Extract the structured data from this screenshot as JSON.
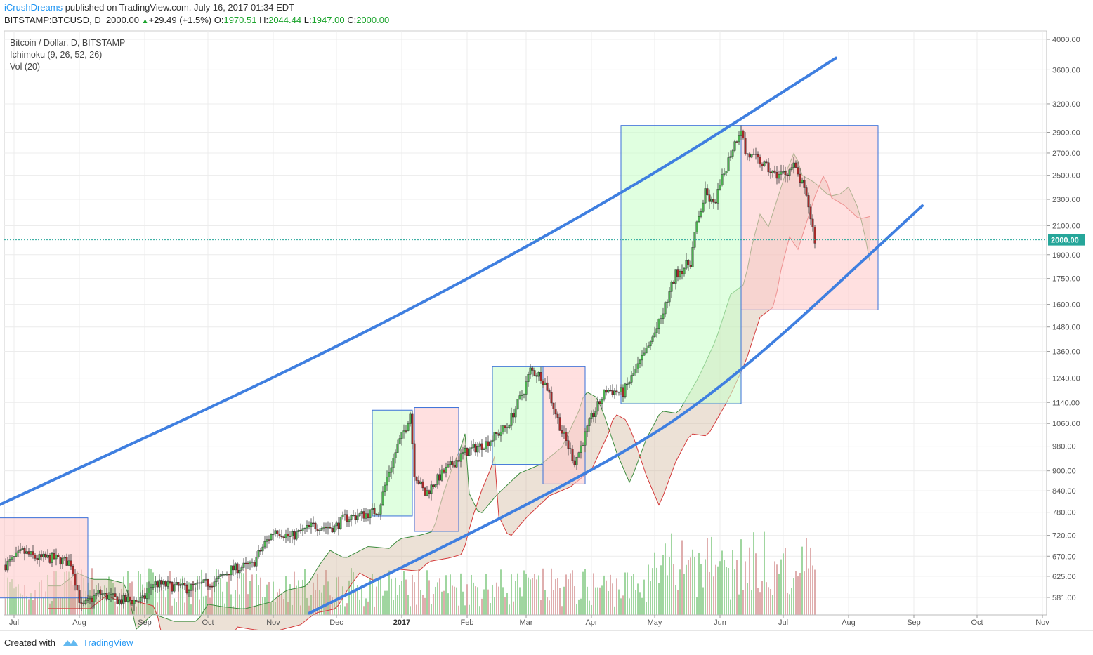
{
  "publish": {
    "user": "iCrushDreams",
    "text": "published on TradingView.com, July 16, 2017 01:34 EDT"
  },
  "quote": {
    "symbol": "BITSTAMP:BTCUSD, D",
    "last": "2000.00",
    "change": "+29.49 (+1.5%)",
    "o_label": "O:",
    "o": "1970.51",
    "h_label": "H:",
    "h": "2044.44",
    "l_label": "L:",
    "l": "1947.00",
    "c_label": "C:",
    "c": "2000.00"
  },
  "legend": {
    "title": "Bitcoin / Dollar, D, BITSTAMP",
    "ind1": "Ichimoku (9, 26, 52, 26)",
    "ind2": "Vol (20)"
  },
  "footer": {
    "created": "Created with",
    "brand": "TradingView"
  },
  "colors": {
    "up": "#4caf50",
    "down": "#a52a2a",
    "trend": "#3f7fe0",
    "box_green": "#ccffcc",
    "box_red": "#ffcccc",
    "price_line": "#26a69a"
  },
  "chart_data": {
    "type": "candlestick",
    "y_scale": "log",
    "y_ticks": [
      "4000.00",
      "3600.00",
      "3200.00",
      "2900.00",
      "2700.00",
      "2500.00",
      "2300.00",
      "2100.00",
      "1900.00",
      "1750.00",
      "1600.00",
      "1480.00",
      "1360.00",
      "1240.00",
      "1140.00",
      "1060.00",
      "980.00",
      "900.00",
      "840.00",
      "780.00",
      "720.00",
      "670.00",
      "625.00",
      "581.00"
    ],
    "x_ticks": [
      {
        "label": "Jul",
        "date": "2016-07-01"
      },
      {
        "label": "Aug",
        "date": "2016-08-01"
      },
      {
        "label": "Sep",
        "date": "2016-09-01"
      },
      {
        "label": "Oct",
        "date": "2016-10-01"
      },
      {
        "label": "Nov",
        "date": "2016-11-01"
      },
      {
        "label": "Dec",
        "date": "2016-12-01"
      },
      {
        "label": "2017",
        "date": "2017-01-01",
        "bold": true
      },
      {
        "label": "Feb",
        "date": "2017-02-01"
      },
      {
        "label": "Mar",
        "date": "2017-03-01"
      },
      {
        "label": "Apr",
        "date": "2017-04-01"
      },
      {
        "label": "May",
        "date": "2017-05-01"
      },
      {
        "label": "Jun",
        "date": "2017-06-01"
      },
      {
        "label": "Jul",
        "date": "2017-07-01"
      },
      {
        "label": "Aug",
        "date": "2017-08-01"
      },
      {
        "label": "Sep",
        "date": "2017-09-01"
      },
      {
        "label": "Oct",
        "date": "2017-10-01"
      },
      {
        "label": "Nov",
        "date": "2017-11-01"
      }
    ],
    "last_price": "2000.00",
    "price_path": [
      [
        "2016-06-27",
        650
      ],
      [
        "2016-07-05",
        680
      ],
      [
        "2016-07-12",
        665
      ],
      [
        "2016-07-20",
        665
      ],
      [
        "2016-07-28",
        655
      ],
      [
        "2016-08-02",
        560
      ],
      [
        "2016-08-10",
        590
      ],
      [
        "2016-08-20",
        575
      ],
      [
        "2016-08-31",
        575
      ],
      [
        "2016-09-05",
        610
      ],
      [
        "2016-09-12",
        605
      ],
      [
        "2016-09-22",
        600
      ],
      [
        "2016-10-05",
        615
      ],
      [
        "2016-10-12",
        640
      ],
      [
        "2016-10-22",
        650
      ],
      [
        "2016-10-28",
        700
      ],
      [
        "2016-11-02",
        735
      ],
      [
        "2016-11-09",
        715
      ],
      [
        "2016-11-20",
        745
      ],
      [
        "2016-11-30",
        740
      ],
      [
        "2016-12-05",
        765
      ],
      [
        "2016-12-15",
        775
      ],
      [
        "2016-12-21",
        785
      ],
      [
        "2016-12-25",
        880
      ],
      [
        "2016-12-30",
        980
      ],
      [
        "2017-01-03",
        1050
      ],
      [
        "2017-01-05",
        1100
      ],
      [
        "2017-01-07",
        895
      ],
      [
        "2017-01-12",
        830
      ],
      [
        "2017-01-20",
        890
      ],
      [
        "2017-01-31",
        960
      ],
      [
        "2017-02-10",
        990
      ],
      [
        "2017-02-20",
        1050
      ],
      [
        "2017-02-28",
        1190
      ],
      [
        "2017-03-03",
        1275
      ],
      [
        "2017-03-08",
        1250
      ],
      [
        "2017-03-11",
        1200
      ],
      [
        "2017-03-18",
        1030
      ],
      [
        "2017-03-24",
        930
      ],
      [
        "2017-03-26",
        960
      ],
      [
        "2017-04-01",
        1080
      ],
      [
        "2017-04-08",
        1190
      ],
      [
        "2017-04-16",
        1180
      ],
      [
        "2017-04-26",
        1340
      ],
      [
        "2017-05-04",
        1520
      ],
      [
        "2017-05-11",
        1780
      ],
      [
        "2017-05-18",
        1850
      ],
      [
        "2017-05-20",
        2040
      ],
      [
        "2017-05-25",
        2350
      ],
      [
        "2017-05-29",
        2250
      ],
      [
        "2017-06-06",
        2700
      ],
      [
        "2017-06-11",
        2950
      ],
      [
        "2017-06-13",
        2700
      ],
      [
        "2017-06-20",
        2620
      ],
      [
        "2017-06-27",
        2500
      ],
      [
        "2017-07-02",
        2520
      ],
      [
        "2017-07-06",
        2580
      ],
      [
        "2017-07-10",
        2420
      ],
      [
        "2017-07-13",
        2250
      ],
      [
        "2017-07-16",
        2000
      ]
    ],
    "boxes": [
      {
        "color": "red",
        "x0": "2016-06-24",
        "x1": "2016-08-05",
        "y0": 580,
        "y1": 765
      },
      {
        "color": "green",
        "x0": "2016-12-18",
        "x1": "2017-01-06",
        "y0": 770,
        "y1": 1110
      },
      {
        "color": "red",
        "x0": "2017-01-07",
        "x1": "2017-01-28",
        "y0": 730,
        "y1": 1120
      },
      {
        "color": "green",
        "x0": "2017-02-13",
        "x1": "2017-03-09",
        "y0": 920,
        "y1": 1290
      },
      {
        "color": "red",
        "x0": "2017-03-09",
        "x1": "2017-03-29",
        "y0": 860,
        "y1": 1290
      },
      {
        "color": "green",
        "x0": "2017-04-15",
        "x1": "2017-06-11",
        "y0": 1135,
        "y1": 2970
      },
      {
        "color": "red",
        "x0": "2017-06-11",
        "x1": "2017-08-15",
        "y0": 1570,
        "y1": 2970
      }
    ],
    "trendlines": [
      {
        "name": "upper",
        "points": [
          [
            "2016-06-24",
            800
          ],
          [
            "2016-12-01",
            1370
          ],
          [
            "2017-04-15",
            2330
          ],
          [
            "2017-07-26",
            3750
          ]
        ]
      },
      {
        "name": "lower",
        "points": [
          [
            "2016-11-18",
            550
          ],
          [
            "2017-03-28",
            880
          ],
          [
            "2017-06-01",
            1180
          ],
          [
            "2017-09-05",
            2250
          ]
        ]
      }
    ]
  }
}
